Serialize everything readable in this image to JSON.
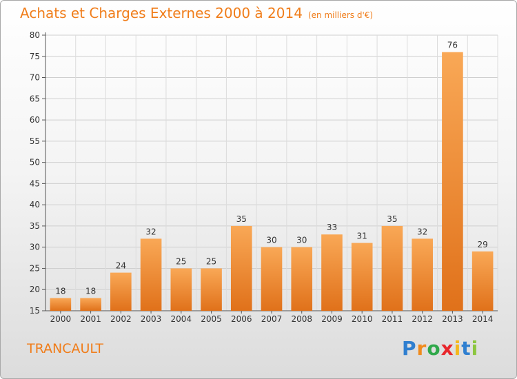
{
  "page": {
    "title": "Achats et Charges Externes 2000 à 2014",
    "unit": "(en milliers d'€)",
    "location": "TRANCAULT",
    "logo_letters": [
      "P",
      "r",
      "o",
      "x",
      "i",
      "t",
      "i"
    ],
    "logo_colors": [
      "#2f7fd0",
      "#f08a1c",
      "#2fa84a",
      "#e8262c",
      "#f4b81c",
      "#2f7fd0",
      "#8cc63f"
    ],
    "accent_color": "#f07d1a"
  },
  "chart_data": {
    "type": "bar",
    "title": "Achats et Charges Externes 2000 à 2014",
    "categories": [
      "2000",
      "2001",
      "2002",
      "2003",
      "2004",
      "2005",
      "2006",
      "2007",
      "2008",
      "2009",
      "2010",
      "2011",
      "2012",
      "2013",
      "2014"
    ],
    "values": [
      18,
      18,
      24,
      32,
      25,
      25,
      35,
      30,
      30,
      33,
      31,
      35,
      32,
      76,
      29
    ],
    "ylim": [
      15,
      80
    ],
    "yticks": [
      15,
      20,
      25,
      30,
      35,
      40,
      45,
      50,
      55,
      60,
      65,
      70,
      75,
      80
    ],
    "grid": true,
    "bar_color_top": "#f9a856",
    "bar_color_bottom": "#e0711a"
  }
}
